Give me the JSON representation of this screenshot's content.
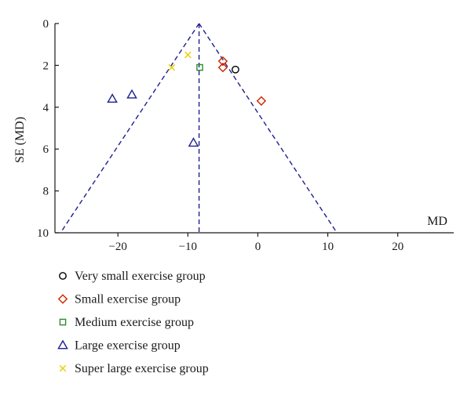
{
  "chart_data": {
    "type": "scatter",
    "title": "",
    "xlabel": "MD",
    "ylabel": "SE (MD)",
    "xlim": [
      -29,
      28
    ],
    "ylim": [
      0,
      10
    ],
    "y_reversed": true,
    "xticks": [
      -20,
      -10,
      0,
      10,
      20
    ],
    "xtick_labels": [
      "−20",
      "−10",
      "0",
      "10",
      "20"
    ],
    "yticks": [
      0,
      2,
      4,
      6,
      8,
      10
    ],
    "ytick_labels": [
      "0",
      "2",
      "4",
      "6",
      "8",
      "10"
    ],
    "grid": false,
    "legend_position": "bottom-left",
    "funnel": {
      "pooled_md": -8.4,
      "apex_se": 0,
      "base_se": 10,
      "base_left_md": -28.2,
      "base_right_md": 11.3,
      "color": "#1f1f8f"
    },
    "series": [
      {
        "name": "Very small exercise group",
        "marker": "circle",
        "color": "#000000",
        "points": [
          {
            "x": -3.2,
            "y": 2.2
          }
        ]
      },
      {
        "name": "Small exercise group",
        "marker": "diamond",
        "color": "#cc2200",
        "points": [
          {
            "x": -5.0,
            "y": 1.8
          },
          {
            "x": -5.0,
            "y": 2.1
          },
          {
            "x": 0.5,
            "y": 3.7
          }
        ]
      },
      {
        "name": "Medium exercise group",
        "marker": "square",
        "color": "#2e8b2e",
        "points": [
          {
            "x": -8.3,
            "y": 2.1
          }
        ]
      },
      {
        "name": "Large exercise group",
        "marker": "triangle",
        "color": "#1f1f8f",
        "points": [
          {
            "x": -20.8,
            "y": 3.6
          },
          {
            "x": -18.0,
            "y": 3.4
          },
          {
            "x": -9.2,
            "y": 5.7
          }
        ]
      },
      {
        "name": "Super large exercise group",
        "marker": "x",
        "color": "#e6d000",
        "points": [
          {
            "x": -10.0,
            "y": 1.5
          },
          {
            "x": -12.3,
            "y": 2.1
          }
        ]
      }
    ]
  }
}
